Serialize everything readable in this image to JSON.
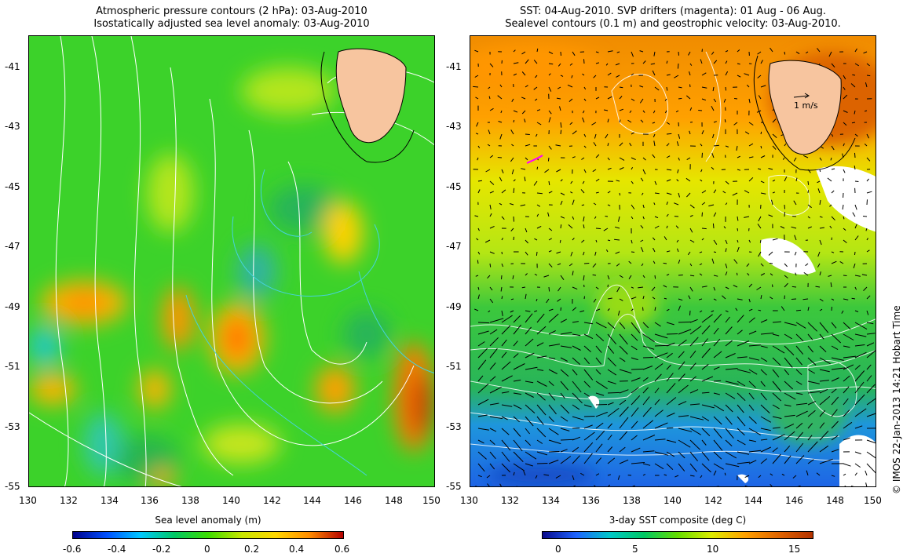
{
  "left_panel": {
    "title_line1": "Atmospheric pressure contours (2 hPa): 03-Aug-2010",
    "title_line2": "Isostatically adjusted sea level anomaly: 03-Aug-2010",
    "colorbar_title": "Sea level anomaly (m)",
    "colorbar_ticks": [
      "-0.6",
      "-0.4",
      "-0.2",
      "0",
      "0.2",
      "0.4",
      "0.6"
    ]
  },
  "right_panel": {
    "title_line1": "SST: 04-Aug-2010. SVP drifters (magenta): 01 Aug - 06 Aug.",
    "title_line2": "Sealevel contours (0.1 m) and geostrophic velocity: 03-Aug-2010.",
    "colorbar_title": "3-day SST composite (deg C)",
    "colorbar_ticks": [
      "0",
      "5",
      "10",
      "15"
    ],
    "velocity_scale_label": "1 m/s"
  },
  "axes": {
    "x_ticks": [
      "130",
      "132",
      "134",
      "136",
      "138",
      "140",
      "142",
      "144",
      "146",
      "148",
      "150"
    ],
    "y_ticks": [
      "-41",
      "-43",
      "-45",
      "-47",
      "-49",
      "-51",
      "-53",
      "-55"
    ],
    "lon_range": [
      130,
      150
    ],
    "lat_range": [
      -40,
      -55
    ]
  },
  "credit": "© IMOS 22-Jan-2013 14:21 Hobart Time",
  "colors": {
    "land": "#f7c59f",
    "sla_ramp": [
      "#00008b",
      "#0050ff",
      "#00c8ff",
      "#00c864",
      "#3cdc00",
      "#c8e600",
      "#ffd700",
      "#ff8c00",
      "#b40000"
    ],
    "sst_ramp": [
      "#0a0a8c",
      "#1e64ff",
      "#00c8c8",
      "#00c864",
      "#64dc00",
      "#dcec00",
      "#ffa000",
      "#e06400",
      "#b43200"
    ]
  }
}
